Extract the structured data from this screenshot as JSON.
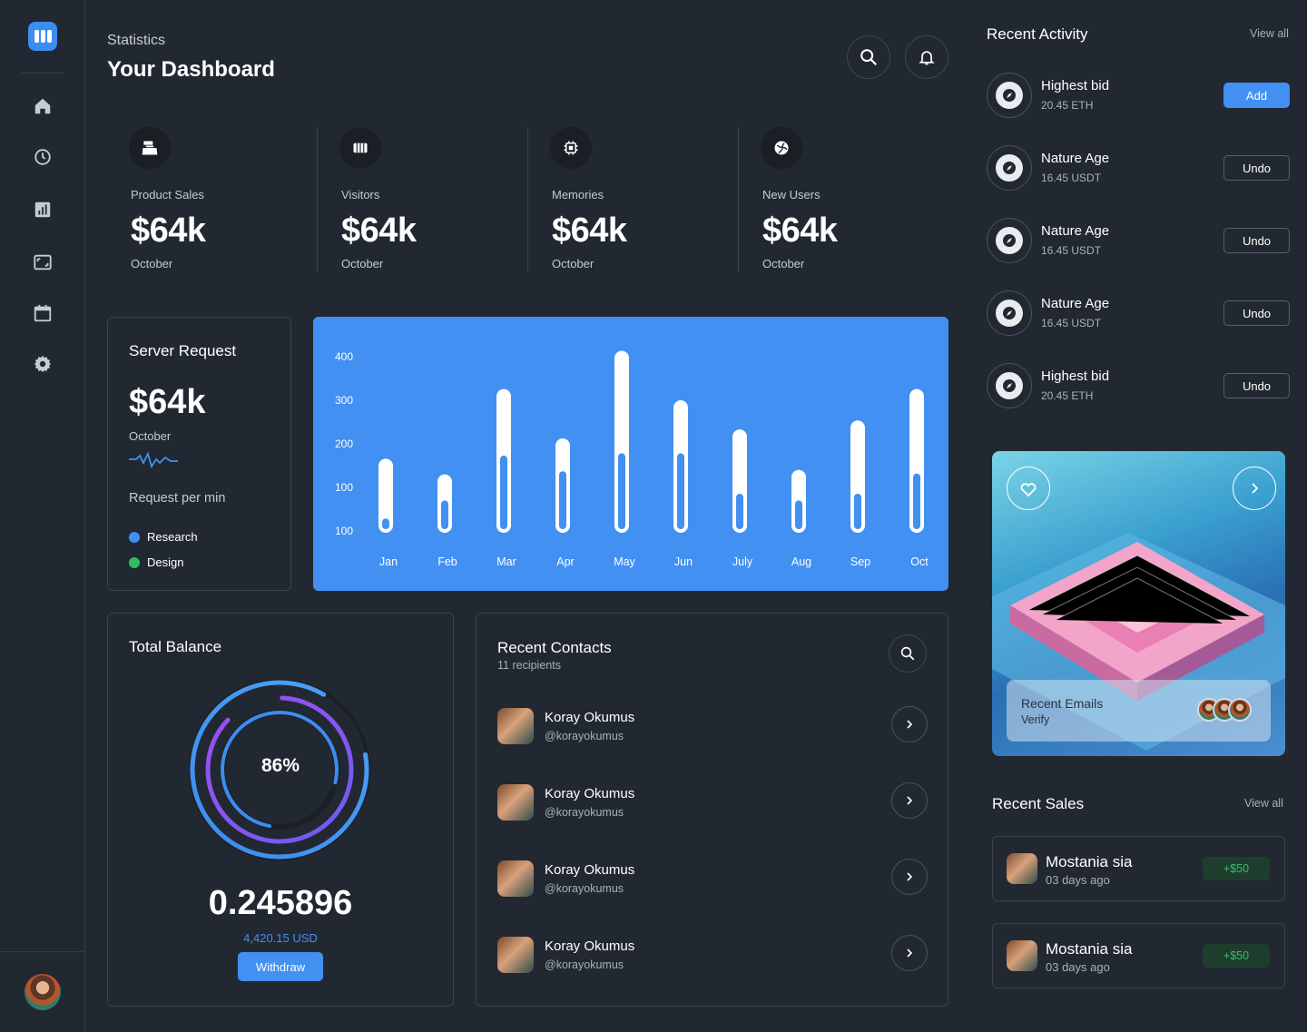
{
  "header": {
    "subtitle": "Statistics",
    "title": "Your Dashboard"
  },
  "nav": {
    "items": [
      "home-icon",
      "clock-icon",
      "chart-icon",
      "screen-icon",
      "calendar-icon",
      "gear-icon"
    ]
  },
  "stats": [
    {
      "label": "Product Sales",
      "value": "$64k",
      "period": "October",
      "icon": "cash-register-icon"
    },
    {
      "label": "Visitors",
      "value": "$64k",
      "period": "October",
      "icon": "cinema-icon"
    },
    {
      "label": "Memories",
      "value": "$64k",
      "period": "October",
      "icon": "chip-icon"
    },
    {
      "label": "New Users",
      "value": "$64k",
      "period": "October",
      "icon": "globe-icon"
    }
  ],
  "server": {
    "title": "Server Request",
    "value": "$64k",
    "period": "October",
    "caption": "Request per min",
    "legend": [
      {
        "label": "Research",
        "color": "#4290f1"
      },
      {
        "label": "Design",
        "color": "#2fbf5d"
      }
    ]
  },
  "chart_data": {
    "type": "bar",
    "categories": [
      "Jan",
      "Feb",
      "Mar",
      "Apr",
      "May",
      "Jun",
      "July",
      "Aug",
      "Sep",
      "Oct"
    ],
    "y_tick_labels": [
      "400",
      "300",
      "200",
      "100",
      "100"
    ],
    "series": [
      {
        "values": [
          165,
          130,
          320,
          210,
          405,
          295,
          230,
          140,
          250,
          320
        ]
      },
      {
        "values": [
          40,
          80,
          180,
          145,
          185,
          185,
          95,
          80,
          95,
          140
        ]
      }
    ],
    "ylim": [
      0,
      400
    ],
    "colors": {
      "background": "#4290f1",
      "bar": "#ffffff",
      "inner": "#4290f1"
    }
  },
  "balance": {
    "title": "Total Balance",
    "percent": "86%",
    "percent_value": 86,
    "amount": "0.245896",
    "usd": "4,420.15 USD",
    "button": "Withdraw"
  },
  "contacts": {
    "title": "Recent Contacts",
    "subtitle": "11 recipients",
    "items": [
      {
        "name": "Koray Okumus",
        "handle": "@korayokumus"
      },
      {
        "name": "Koray Okumus",
        "handle": "@korayokumus"
      },
      {
        "name": "Koray Okumus",
        "handle": "@korayokumus"
      },
      {
        "name": "Koray Okumus",
        "handle": "@korayokumus"
      }
    ]
  },
  "activity": {
    "title": "Recent Activity",
    "view_all": "View all",
    "items": [
      {
        "name": "Highest bid",
        "value": "20.45 ETH",
        "action": "Add"
      },
      {
        "name": "Nature Age",
        "value": "16.45 USDT",
        "action": "Undo"
      },
      {
        "name": "Nature Age",
        "value": "16.45 USDT",
        "action": "Undo"
      },
      {
        "name": "Nature Age",
        "value": "16.45 USDT",
        "action": "Undo"
      },
      {
        "name": "Highest bid",
        "value": "20.45 ETH",
        "action": "Undo"
      }
    ]
  },
  "promo": {
    "title": "Recent Emails",
    "subtitle": "Verify"
  },
  "sales": {
    "title": "Recent Sales",
    "view_all": "View all",
    "items": [
      {
        "name": "Mostania sia",
        "time": "03 days ago",
        "amount": "+$50"
      },
      {
        "name": "Mostania sia",
        "time": "03 days ago",
        "amount": "+$50"
      }
    ]
  }
}
